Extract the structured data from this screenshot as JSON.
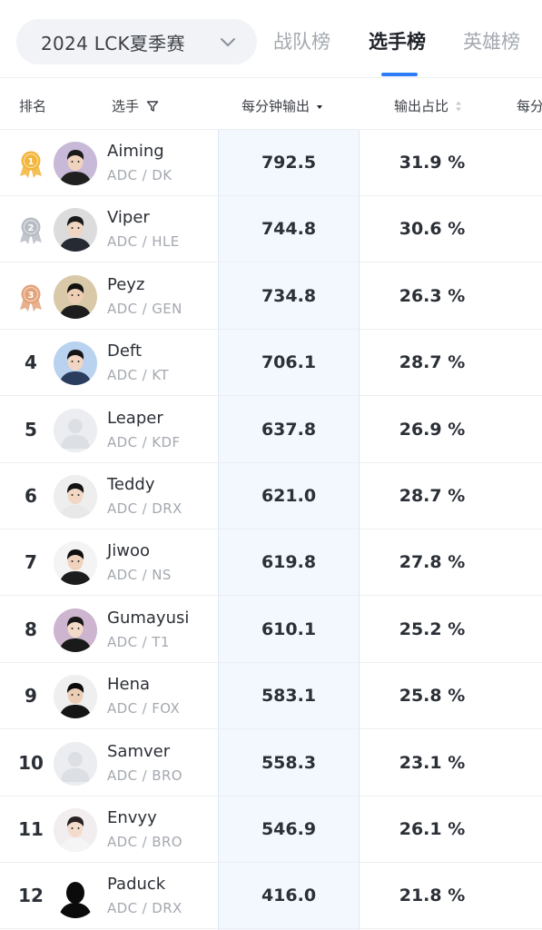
{
  "season_select": {
    "label": "2024 LCK夏季赛"
  },
  "tabs": [
    {
      "label": "战队榜",
      "active": false
    },
    {
      "label": "选手榜",
      "active": true
    },
    {
      "label": "英雄榜",
      "active": false
    }
  ],
  "table": {
    "headers": {
      "rank": "排名",
      "player": "选手",
      "dpm": "每分钟输出",
      "share": "输出占比",
      "next": "每分"
    },
    "rows": [
      {
        "rank": "1",
        "medal": "gold",
        "name": "Aiming",
        "role_team": "ADC / DK",
        "dpm": "792.5",
        "share": "31.9 %"
      },
      {
        "rank": "2",
        "medal": "silver",
        "name": "Viper",
        "role_team": "ADC / HLE",
        "dpm": "744.8",
        "share": "30.6 %"
      },
      {
        "rank": "3",
        "medal": "bronze",
        "name": "Peyz",
        "role_team": "ADC / GEN",
        "dpm": "734.8",
        "share": "26.3 %"
      },
      {
        "rank": "4",
        "name": "Deft",
        "role_team": "ADC / KT",
        "dpm": "706.1",
        "share": "28.7 %"
      },
      {
        "rank": "5",
        "name": "Leaper",
        "role_team": "ADC / KDF",
        "dpm": "637.8",
        "share": "26.9 %"
      },
      {
        "rank": "6",
        "name": "Teddy",
        "role_team": "ADC / DRX",
        "dpm": "621.0",
        "share": "28.7 %"
      },
      {
        "rank": "7",
        "name": "Jiwoo",
        "role_team": "ADC / NS",
        "dpm": "619.8",
        "share": "27.8 %"
      },
      {
        "rank": "8",
        "name": "Gumayusi",
        "role_team": "ADC / T1",
        "dpm": "610.1",
        "share": "25.2 %"
      },
      {
        "rank": "9",
        "name": "Hena",
        "role_team": "ADC / FOX",
        "dpm": "583.1",
        "share": "25.8 %"
      },
      {
        "rank": "10",
        "name": "Samver",
        "role_team": "ADC / BRO",
        "dpm": "558.3",
        "share": "23.1 %"
      },
      {
        "rank": "11",
        "name": "Envyy",
        "role_team": "ADC / BRO",
        "dpm": "546.9",
        "share": "26.1 %"
      },
      {
        "rank": "12",
        "name": "Paduck",
        "role_team": "ADC / DRX",
        "dpm": "416.0",
        "share": "21.8 %"
      }
    ]
  },
  "colors": {
    "accent": "#2e7df6",
    "gold": "#f2b43a",
    "silver": "#b7bcc4",
    "bronze": "#e3a27a"
  }
}
